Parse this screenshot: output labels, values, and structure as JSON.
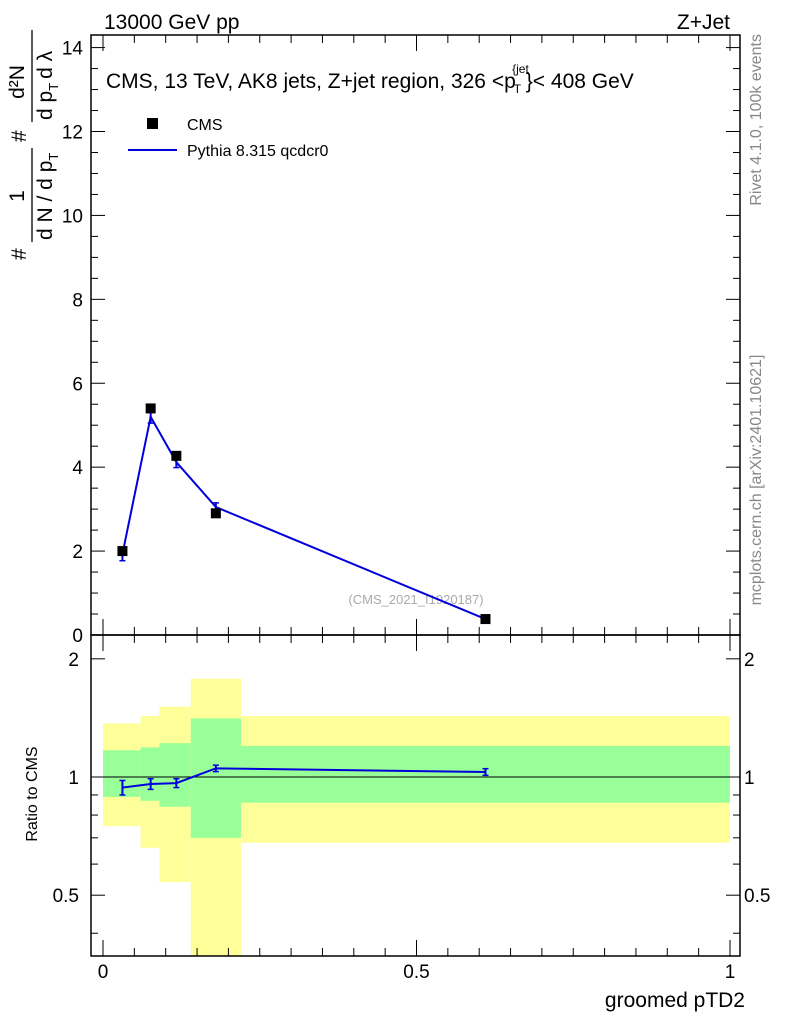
{
  "header": {
    "left": "13000 GeV pp",
    "right": "Z+Jet"
  },
  "side_text": {
    "rivet": "Rivet 4.1.0,  100k events",
    "mcplots": "mcplots.cern.ch [arXiv:2401.10621]"
  },
  "chart_data": [
    {
      "type": "line",
      "title": "CMS, 13 TeV, AK8 jets, Z+jet region, 326 <p",
      "title_sup": "{jet",
      "title_sub": "T",
      "title_end": "}< 408 GeV",
      "ylabel": "# 1/dN/dp_T # d²N/dp_T dλ",
      "ylabel_parts": {
        "hash1": "#",
        "num1": "1",
        "den1": "d N / d p",
        "den1_sub": "T",
        "hash2": "#",
        "num2": "d²N",
        "den2": "d p",
        "den2_sub": "T",
        "den2_end": "d λ"
      },
      "xlim": [
        0,
        1
      ],
      "ylim": [
        0,
        14.3
      ],
      "yticks": [
        0,
        2,
        4,
        6,
        8,
        10,
        12,
        14
      ],
      "legend": [
        {
          "name": "CMS",
          "marker": "square",
          "color": "#000000"
        },
        {
          "name": "Pythia 8.315 qcdcr0",
          "marker": "line",
          "color": "#0000dd"
        }
      ],
      "watermark": "(CMS_2021_I1920187)",
      "series": [
        {
          "name": "CMS",
          "x": [
            0.031,
            0.076,
            0.117,
            0.18,
            0.61
          ],
          "y": [
            2.0,
            5.4,
            4.27,
            2.9,
            0.38
          ]
        },
        {
          "name": "Pythia 8.315 qcdcr0",
          "x": [
            0.031,
            0.076,
            0.117,
            0.18,
            0.61
          ],
          "y": [
            1.93,
            5.2,
            4.12,
            3.05,
            0.38
          ],
          "yerr": [
            0.16,
            0.15,
            0.13,
            0.1,
            0.02
          ]
        }
      ]
    },
    {
      "type": "line",
      "ylabel": "Ratio to CMS",
      "xlabel": "groomed pTD2",
      "xlim": [
        0,
        1
      ],
      "ylim": [
        0.35,
        2.3
      ],
      "yscale": "log",
      "xticks": [
        0,
        0.5,
        1
      ],
      "yticks": [
        0.5,
        1,
        2
      ],
      "bands": {
        "edges": [
          0,
          0.06,
          0.09,
          0.14,
          0.22,
          1.0
        ],
        "inner_color": "#99ff99",
        "outer_color": "#ffff99",
        "inner_low": [
          0.89,
          0.87,
          0.84,
          0.7,
          0.86
        ],
        "inner_high": [
          1.17,
          1.19,
          1.22,
          1.41,
          1.2
        ],
        "outer_low": [
          0.75,
          0.66,
          0.54,
          0.34,
          0.68
        ],
        "outer_high": [
          1.37,
          1.43,
          1.51,
          1.78,
          1.43
        ]
      },
      "series": [
        {
          "name": "Pythia 8.315 qcdcr0",
          "x": [
            0.031,
            0.076,
            0.117,
            0.18,
            0.61
          ],
          "y": [
            0.94,
            0.96,
            0.965,
            1.052,
            1.03
          ],
          "yerr": [
            0.04,
            0.03,
            0.025,
            0.02,
            0.02
          ]
        }
      ]
    }
  ]
}
